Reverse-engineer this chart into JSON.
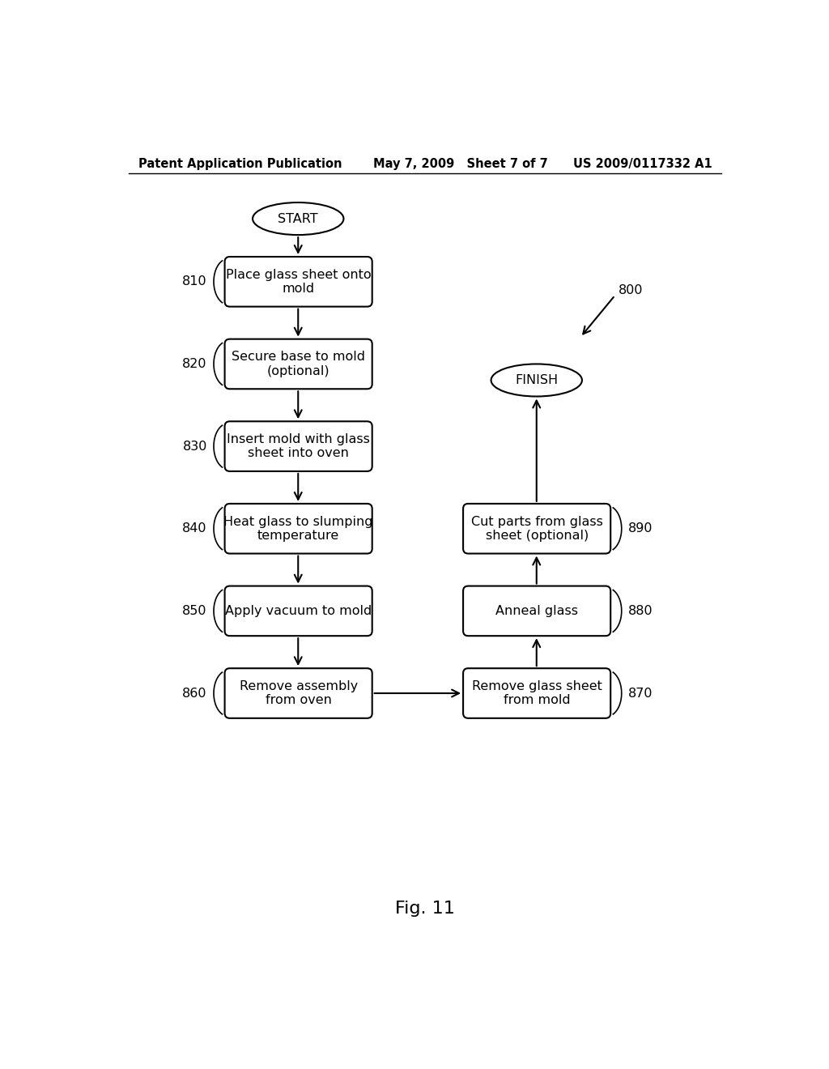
{
  "bg_color": "#ffffff",
  "header_left": "Patent Application Publication",
  "header_mid": "May 7, 2009   Sheet 7 of 7",
  "header_right": "US 2009/0117332 A1",
  "fig_label": "Fig. 11",
  "start_label": "START",
  "finish_label": "FINISH",
  "left_boxes": [
    {
      "text": "Place glass sheet onto\nmold",
      "label": "810"
    },
    {
      "text": "Secure base to mold\n(optional)",
      "label": "820"
    },
    {
      "text": "Insert mold with glass\nsheet into oven",
      "label": "830"
    },
    {
      "text": "Heat glass to slumping\ntemperature",
      "label": "840"
    },
    {
      "text": "Apply vacuum to mold",
      "label": "850"
    },
    {
      "text": "Remove assembly\nfrom oven",
      "label": "860"
    }
  ],
  "right_boxes": [
    {
      "text": "Cut parts from glass\nsheet (optional)",
      "label": "890"
    },
    {
      "text": "Anneal glass",
      "label": "880"
    },
    {
      "text": "Remove glass sheet\nfrom mold",
      "label": "870"
    }
  ],
  "ref_800": "800",
  "box_color": "#ffffff",
  "box_edge_color": "#000000",
  "arrow_color": "#000000",
  "text_color": "#000000",
  "font_size_box": 11.5,
  "font_size_label": 11.5,
  "font_size_header": 10.5,
  "font_size_fig": 16
}
